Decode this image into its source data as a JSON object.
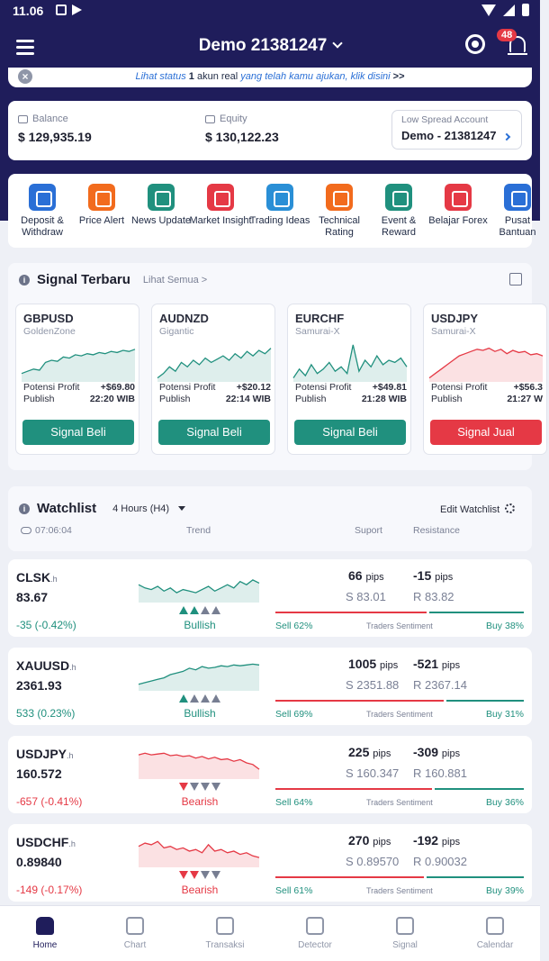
{
  "status_bar": {
    "time": "11.06"
  },
  "header": {
    "account_title": "Demo 21381247",
    "notification_count": "48"
  },
  "notice": {
    "prefix": "Lihat status",
    "count": "1",
    "middle": "akun real",
    "link": "yang telah kamu ajukan, klik disini",
    "suffix": ">>",
    "close": "×"
  },
  "balance": {
    "balance_label": "Balance",
    "balance_value": "$ 129,935.19",
    "equity_label": "Equity",
    "equity_value": "$ 130,122.23",
    "spread_label": "Low Spread Account",
    "spread_value": "Demo - 21381247"
  },
  "menu": [
    {
      "label": "Deposit & Withdraw",
      "color": "#2a6fd6",
      "icon": "wallet-icon"
    },
    {
      "label": "Price Alert",
      "color": "#f26b1d",
      "icon": "alert-icon"
    },
    {
      "label": "News Update",
      "color": "#20907e",
      "icon": "globe-icon"
    },
    {
      "label": "Market Insight",
      "color": "#e53945",
      "icon": "insight-icon"
    },
    {
      "label": "Trading Ideas",
      "color": "#2a8fd6",
      "icon": "ideas-icon"
    },
    {
      "label": "Technical Rating",
      "color": "#f26b1d",
      "icon": "rating-icon"
    },
    {
      "label": "Event & Reward",
      "color": "#20907e",
      "icon": "reward-icon"
    },
    {
      "label": "Belajar Forex",
      "color": "#e53945",
      "icon": "learn-icon"
    },
    {
      "label": "Pusat Bantuan",
      "color": "#2a6fd6",
      "icon": "help-icon"
    }
  ],
  "signals": {
    "title": "Signal Terbaru",
    "see_all": "Lihat Semua >",
    "items": [
      {
        "pair": "GBPUSD",
        "strategy": "GoldenZone",
        "profit_label": "Potensi Profit",
        "profit": "+$69.80",
        "publish_label": "Publish",
        "publish": "22:20 WIB",
        "button": "Signal Beli",
        "direction": "buy",
        "spark": [
          30,
          28,
          26,
          27,
          20,
          18,
          19,
          15,
          16,
          13,
          14,
          12,
          13,
          11,
          12,
          10,
          11,
          9,
          10,
          8
        ]
      },
      {
        "pair": "AUDNZD",
        "strategy": "Gigantic",
        "profit_label": "Potensi Profit",
        "profit": "+$20.12",
        "publish_label": "Publish",
        "publish": "22:14 WIB",
        "button": "Signal Beli",
        "direction": "buy",
        "spark": [
          34,
          30,
          24,
          28,
          20,
          24,
          18,
          22,
          16,
          20,
          17,
          14,
          18,
          12,
          16,
          10,
          14,
          9,
          12,
          7
        ]
      },
      {
        "pair": "EURCHF",
        "strategy": "Samurai-X",
        "profit_label": "Potensi Profit",
        "profit": "+$49.81",
        "publish_label": "Publish",
        "publish": "21:28 WIB",
        "button": "Signal Beli",
        "direction": "buy",
        "spark": [
          34,
          26,
          32,
          22,
          30,
          26,
          20,
          28,
          24,
          30,
          4,
          28,
          18,
          24,
          14,
          22,
          18,
          20,
          16,
          24
        ]
      },
      {
        "pair": "USDJPY",
        "strategy": "Samurai-X",
        "profit_label": "Potensi Profit",
        "profit": "+$56.3",
        "publish_label": "Publish",
        "publish": "21:27 W",
        "button": "Signal Jual",
        "direction": "sell",
        "spark": [
          34,
          30,
          26,
          22,
          18,
          14,
          12,
          10,
          8,
          9,
          7,
          10,
          8,
          12,
          9,
          11,
          10,
          13,
          12,
          14
        ]
      }
    ]
  },
  "watchlist": {
    "title": "Watchlist",
    "timeframe": "4 Hours (H4)",
    "edit": "Edit Watchlist",
    "time": "07:06:04",
    "col_trend": "Trend",
    "col_support": "Suport",
    "col_resistance": "Resistance",
    "sentiment_label": "Traders Sentiment",
    "rows": [
      {
        "symbol": "CLSK",
        "suffix": ".h",
        "price": "83.67",
        "change": "-35 (-0.42%)",
        "change_color": "pos",
        "trend": "Bullish",
        "trend_dir": "up",
        "arrows_on": 2,
        "support_pips": "66",
        "resistance_pips": "-15",
        "pips_unit": "pips",
        "support": "S 83.01",
        "resistance": "R 83.82",
        "sell": "Sell 62%",
        "buy": "Buy 38%",
        "sell_pct": 62,
        "spark": [
          16,
          20,
          22,
          18,
          24,
          20,
          26,
          22,
          24,
          26,
          22,
          18,
          24,
          20,
          16,
          20,
          12,
          16,
          10,
          14
        ]
      },
      {
        "symbol": "XAUUSD",
        "suffix": ".h",
        "price": "2361.93",
        "change": "533 (0.23%)",
        "change_color": "pos",
        "trend": "Bullish",
        "trend_dir": "up",
        "arrows_on": 1,
        "support_pips": "1005",
        "resistance_pips": "-521",
        "pips_unit": "pips",
        "support": "S 2351.88",
        "resistance": "R 2367.14",
        "sell": "Sell 69%",
        "buy": "Buy 31%",
        "sell_pct": 69,
        "spark": [
          30,
          28,
          26,
          24,
          22,
          18,
          16,
          14,
          10,
          12,
          8,
          10,
          9,
          7,
          8,
          6,
          7,
          6,
          5,
          6
        ]
      },
      {
        "symbol": "USDJPY",
        "suffix": ".h",
        "price": "160.572",
        "change": "-657 (-0.41%)",
        "change_color": "neg",
        "trend": "Bearish",
        "trend_dir": "down",
        "arrows_on": 1,
        "support_pips": "225",
        "resistance_pips": "-309",
        "pips_unit": "pips",
        "support": "S 160.347",
        "resistance": "R 160.881",
        "sell": "Sell 64%",
        "buy": "Buy 36%",
        "sell_pct": 64,
        "spark": [
          8,
          6,
          8,
          7,
          6,
          9,
          8,
          10,
          9,
          12,
          10,
          13,
          11,
          14,
          13,
          16,
          14,
          18,
          20,
          26
        ]
      },
      {
        "symbol": "USDCHF",
        "suffix": ".h",
        "price": "0.89840",
        "change": "-149 (-0.17%)",
        "change_color": "neg",
        "trend": "Bearish",
        "trend_dir": "down",
        "arrows_on": 2,
        "support_pips": "270",
        "resistance_pips": "-192",
        "pips_unit": "pips",
        "support": "S 0.89570",
        "resistance": "R 0.90032",
        "sell": "Sell 61%",
        "buy": "Buy 39%",
        "sell_pct": 61,
        "spark": [
          12,
          8,
          10,
          6,
          14,
          12,
          16,
          14,
          18,
          16,
          20,
          10,
          18,
          16,
          20,
          18,
          22,
          20,
          24,
          26
        ]
      }
    ]
  },
  "bottom_nav": [
    {
      "label": "Home",
      "icon": "home-icon",
      "active": true
    },
    {
      "label": "Chart",
      "icon": "chart-icon",
      "active": false
    },
    {
      "label": "Transaksi",
      "icon": "transaction-icon",
      "active": false
    },
    {
      "label": "Detector",
      "icon": "detector-icon",
      "active": false
    },
    {
      "label": "Signal",
      "icon": "signal-icon",
      "active": false
    },
    {
      "label": "Calendar",
      "icon": "calendar-icon",
      "active": false
    }
  ]
}
